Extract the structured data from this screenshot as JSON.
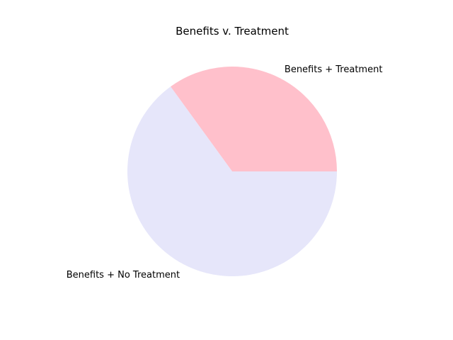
{
  "chart_data": {
    "type": "pie",
    "title": "Benefits v. Treatment",
    "start_angle_deg": 0,
    "direction": "counterclockwise",
    "slices": [
      {
        "label": "Benefits + Treatment",
        "value": 35,
        "color": "#ffc0cb"
      },
      {
        "label": "Benefits + No Treatment",
        "value": 65,
        "color": "#e6e6fa"
      }
    ]
  }
}
